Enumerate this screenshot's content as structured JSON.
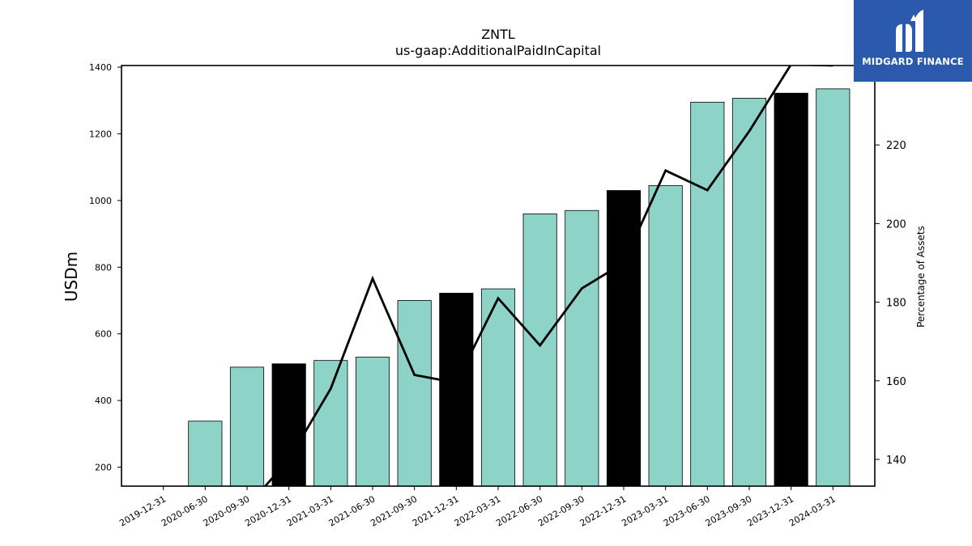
{
  "title": "ZNTL",
  "subtitle": "us-gaap:AdditionalPaidInCapital",
  "brand": {
    "name": "MIDGARD FINANCE",
    "color": "#2b5aad"
  },
  "colors": {
    "bar": "#8dd3c7",
    "bar_highlight": "#000000",
    "line": "#000000"
  },
  "chart_data": {
    "type": "bar",
    "title": "ZNTL",
    "subtitle": "us-gaap:AdditionalPaidInCapital",
    "ylabel": "USDm",
    "y2label": "Percentage of Assets",
    "categories": [
      "2019-12-31",
      "2020-06-30",
      "2020-09-30",
      "2020-12-31",
      "2021-03-31",
      "2021-06-30",
      "2021-09-30",
      "2021-12-31",
      "2022-03-31",
      "2022-06-30",
      "2022-09-30",
      "2022-12-31",
      "2023-03-31",
      "2023-06-30",
      "2023-09-30",
      "2023-12-31",
      "2024-03-31"
    ],
    "ylim": [
      143,
      1405
    ],
    "yticks": [
      200,
      400,
      600,
      800,
      1000,
      1200,
      1400
    ],
    "y2lim": [
      133.2,
      240.2
    ],
    "y2ticks": [
      140,
      160,
      180,
      200,
      220
    ],
    "series": [
      {
        "type": "bar",
        "values": [
          null,
          338,
          500,
          510,
          520,
          530,
          700,
          722,
          735,
          960,
          970,
          1030,
          1045,
          1295,
          1307,
          1322,
          1335
        ],
        "highlight": [
          false,
          false,
          false,
          true,
          false,
          false,
          false,
          true,
          false,
          false,
          false,
          true,
          false,
          false,
          false,
          true,
          false
        ]
      },
      {
        "type": "line",
        "axis": "right",
        "values": [
          null,
          null,
          128,
          140,
          158,
          186,
          161.5,
          159.5,
          181,
          169,
          183.5,
          190,
          213.5,
          208.5,
          223.5,
          240.5,
          240.2
        ]
      }
    ]
  }
}
